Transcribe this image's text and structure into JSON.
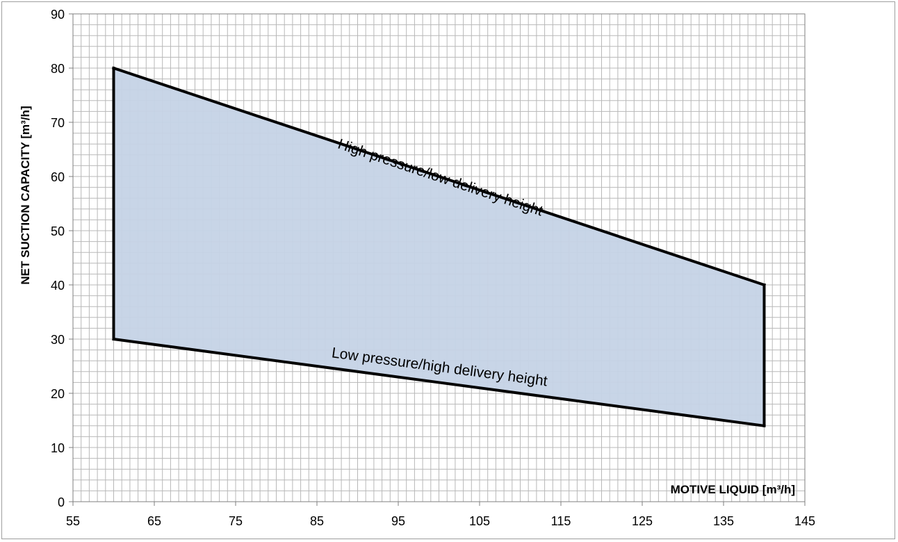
{
  "chart_data": {
    "type": "area",
    "title": "",
    "xlabel": "MOTIVE LIQUID [m³/h]",
    "ylabel": "NET SUCTION CAPACITY [m³/h]",
    "xlim": [
      55,
      145
    ],
    "ylim": [
      0,
      90
    ],
    "x_ticks": [
      "55",
      "65",
      "75",
      "85",
      "95",
      "105",
      "115",
      "125",
      "135",
      "145"
    ],
    "y_ticks": [
      "0",
      "10",
      "20",
      "30",
      "40",
      "50",
      "60",
      "70",
      "80",
      "90"
    ],
    "grid": true,
    "minor_grid_x_step": 1,
    "minor_grid_y_step": 2,
    "region": {
      "polygon": [
        [
          60,
          80
        ],
        [
          140,
          40
        ],
        [
          140,
          14
        ],
        [
          60,
          30
        ]
      ],
      "fill_color": "#c5d3e6",
      "edge_color": "#000000"
    },
    "series": [
      {
        "name": "High pressure/low delivery height",
        "x": [
          60,
          140
        ],
        "y": [
          80,
          40
        ]
      },
      {
        "name": "Low pressure/high delivery height",
        "x": [
          60,
          140
        ],
        "y": [
          30,
          14
        ]
      }
    ],
    "annotations": [
      {
        "text": "High pressure/low delivery height",
        "x": 100,
        "y": 59
      },
      {
        "text": "Low pressure/high delivery height",
        "x": 100,
        "y": 24
      }
    ],
    "colors": {
      "grid": "#b8b8b8",
      "axis": "#7f7f7f",
      "frame": "#9e9e9e"
    }
  }
}
